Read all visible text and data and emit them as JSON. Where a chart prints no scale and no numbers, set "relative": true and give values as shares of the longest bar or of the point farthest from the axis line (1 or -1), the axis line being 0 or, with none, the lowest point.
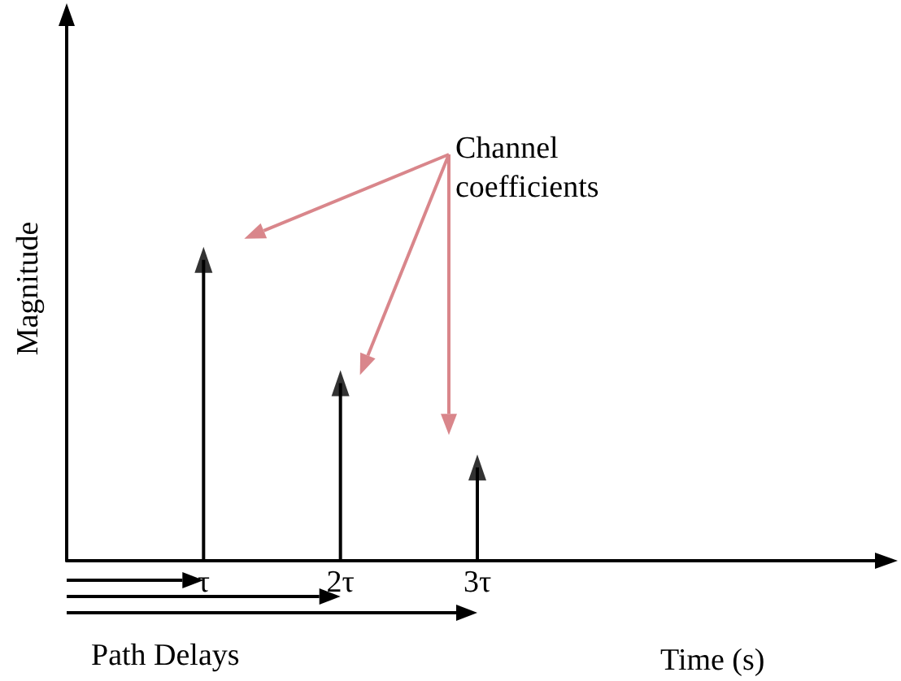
{
  "chart_data": {
    "type": "lollipop",
    "relative": true,
    "xlabel": "Time (s)",
    "ylabel": "Magnitude",
    "categories": [
      null,
      "τ",
      "2τ",
      "3τ",
      null,
      null,
      null
    ],
    "values": [
      null,
      1,
      0.59,
      0.31,
      null,
      null,
      null
    ],
    "color": "#000000",
    "marker": "triangle",
    "annotations": [
      "Channel coefficients",
      "Path Delays"
    ]
  }
}
